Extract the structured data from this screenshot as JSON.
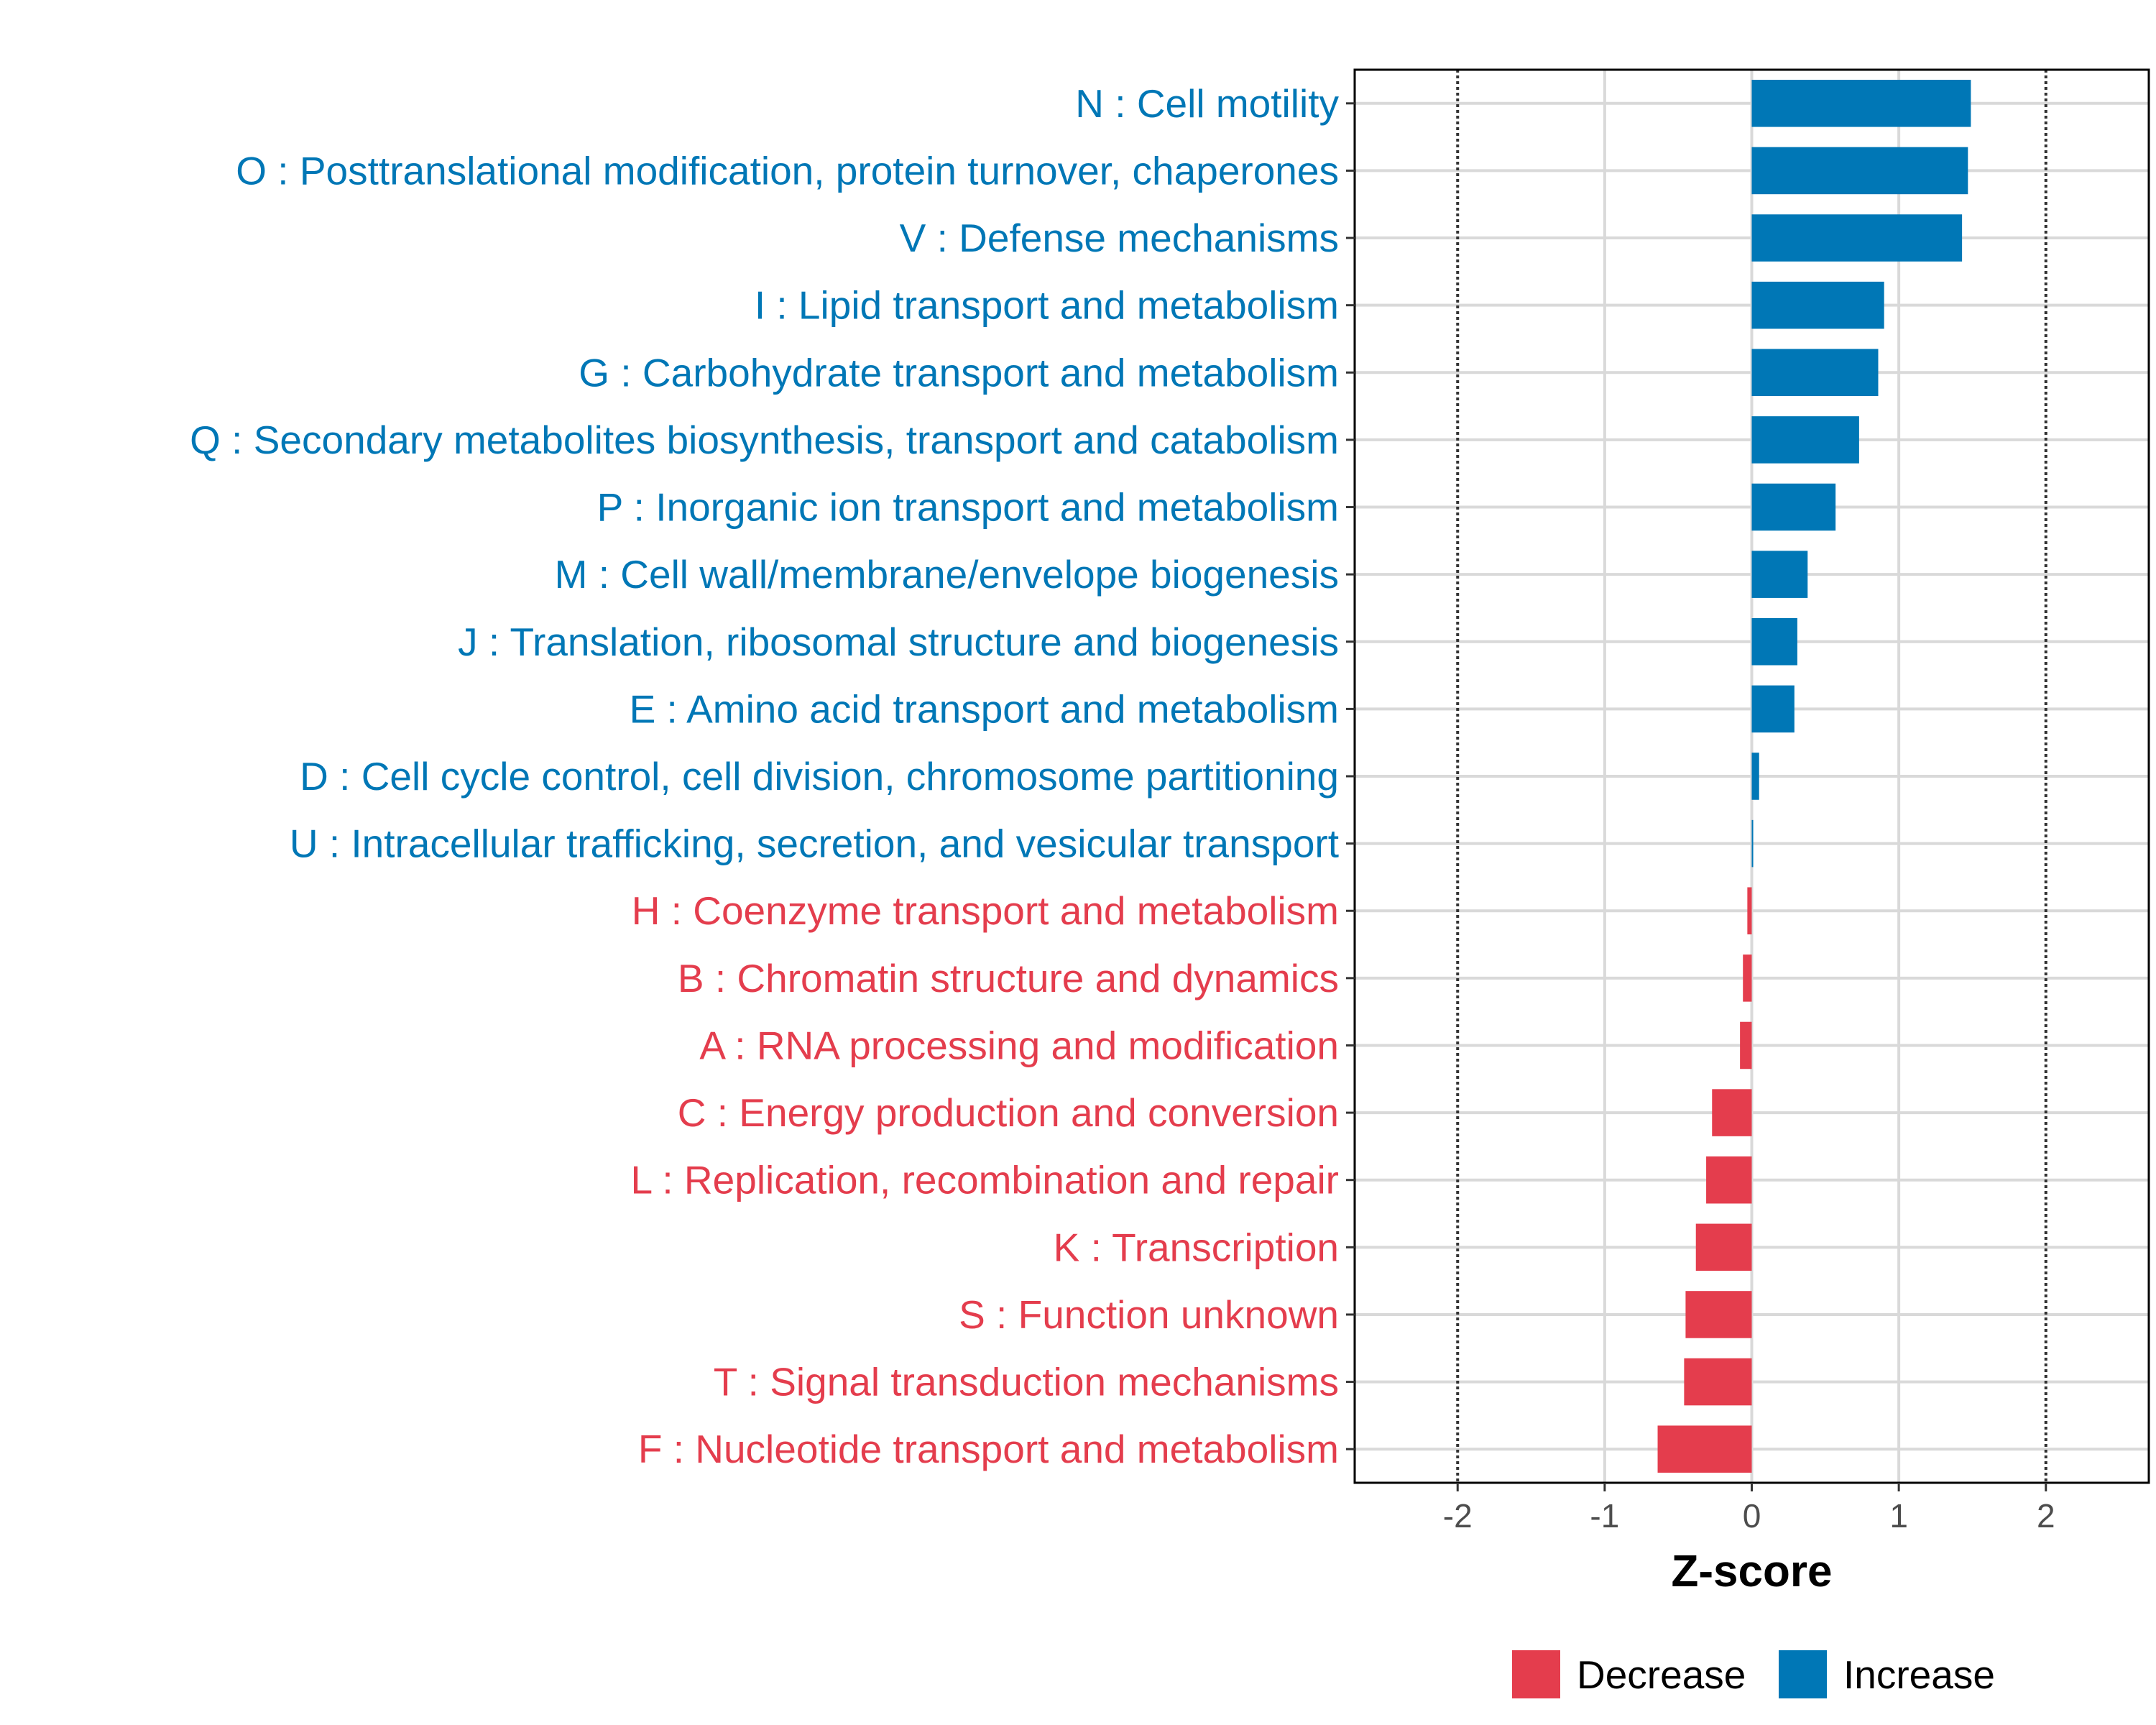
{
  "chart_data": {
    "type": "bar",
    "orientation": "horizontal",
    "xlabel": "Z-score",
    "xlim": [
      -2.7,
      2.7
    ],
    "x_ticks": [
      -2,
      -1,
      0,
      1,
      2
    ],
    "x_tick_labels": [
      "-2",
      "-1",
      "0",
      "1",
      "2"
    ],
    "reference_lines": [
      -2,
      2
    ],
    "grid": true,
    "legend_position": "bottom",
    "colors": {
      "Decrease": "#e43d4d",
      "Increase": "#0077b6"
    },
    "legend": [
      {
        "label": "Decrease",
        "color": "#e43d4d"
      },
      {
        "label": "Increase",
        "color": "#0077b6"
      }
    ],
    "categories": [
      {
        "label": "N : Cell motility",
        "value": 1.49,
        "direction": "Increase"
      },
      {
        "label": "O : Posttranslational modification, protein turnover, chaperones",
        "value": 1.47,
        "direction": "Increase"
      },
      {
        "label": "V : Defense mechanisms",
        "value": 1.43,
        "direction": "Increase"
      },
      {
        "label": "I : Lipid transport and metabolism",
        "value": 0.9,
        "direction": "Increase"
      },
      {
        "label": "G : Carbohydrate transport and metabolism",
        "value": 0.86,
        "direction": "Increase"
      },
      {
        "label": "Q : Secondary metabolites biosynthesis, transport and catabolism",
        "value": 0.73,
        "direction": "Increase"
      },
      {
        "label": "P : Inorganic ion transport and metabolism",
        "value": 0.57,
        "direction": "Increase"
      },
      {
        "label": "M : Cell wall/membrane/envelope biogenesis",
        "value": 0.38,
        "direction": "Increase"
      },
      {
        "label": "J : Translation, ribosomal structure and biogenesis",
        "value": 0.31,
        "direction": "Increase"
      },
      {
        "label": "E : Amino acid transport and metabolism",
        "value": 0.29,
        "direction": "Increase"
      },
      {
        "label": "D : Cell cycle control, cell division, chromosome partitioning",
        "value": 0.05,
        "direction": "Increase"
      },
      {
        "label": "U : Intracellular trafficking, secretion, and vesicular transport",
        "value": 0.01,
        "direction": "Increase"
      },
      {
        "label": "H : Coenzyme transport and metabolism",
        "value": -0.03,
        "direction": "Decrease"
      },
      {
        "label": "B : Chromatin structure and dynamics",
        "value": -0.06,
        "direction": "Decrease"
      },
      {
        "label": "A : RNA processing and modification",
        "value": -0.08,
        "direction": "Decrease"
      },
      {
        "label": "C : Energy production and conversion",
        "value": -0.27,
        "direction": "Decrease"
      },
      {
        "label": "L : Replication, recombination and repair",
        "value": -0.31,
        "direction": "Decrease"
      },
      {
        "label": "K : Transcription",
        "value": -0.38,
        "direction": "Decrease"
      },
      {
        "label": "S : Function unknown",
        "value": -0.45,
        "direction": "Decrease"
      },
      {
        "label": "T : Signal transduction mechanisms",
        "value": -0.46,
        "direction": "Decrease"
      },
      {
        "label": "F : Nucleotide transport and metabolism",
        "value": -0.64,
        "direction": "Decrease"
      }
    ]
  }
}
